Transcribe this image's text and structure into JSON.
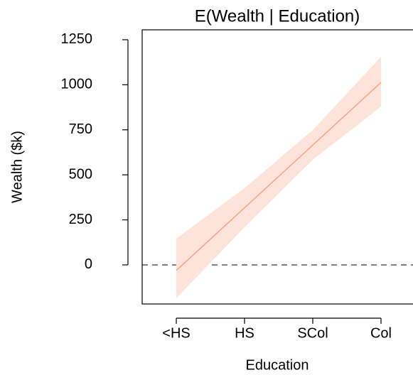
{
  "chart_data": {
    "type": "line",
    "title": "E(Wealth | Education)",
    "xlabel": "Education",
    "ylabel": "Wealth ($k)",
    "categories": [
      "<HS",
      "HS",
      "SCol",
      "Col"
    ],
    "series": [
      {
        "name": "E(Wealth | Education)",
        "color": "#f4a582",
        "band_color": "#fde3da",
        "values": [
          -31,
          317,
          665,
          1013
        ],
        "lower": [
          -185,
          209,
          584,
          879
        ],
        "upper": [
          146,
          426,
          749,
          1155
        ]
      }
    ],
    "reference_line": 0,
    "ylim": [
      -217,
      1305
    ],
    "yticks": [
      0,
      250,
      500,
      750,
      1000,
      1250
    ]
  }
}
